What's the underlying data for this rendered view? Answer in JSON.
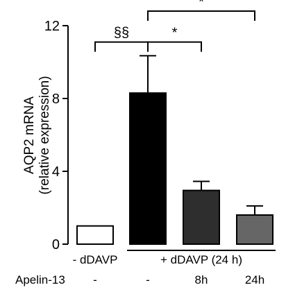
{
  "chart_data": {
    "type": "bar",
    "ylabel_line1": "AQP2 mRNA",
    "ylabel_line2": "(relative expression)",
    "ylim": [
      0,
      12
    ],
    "yticks": [
      0,
      4,
      8,
      12
    ],
    "grid": false,
    "bars": [
      {
        "value": 1.0,
        "error": 0,
        "color": "#ffffff"
      },
      {
        "value": 8.3,
        "error": 2.05,
        "color": "#000000"
      },
      {
        "value": 2.95,
        "error": 0.5,
        "color": "#2e2e2e"
      },
      {
        "value": 1.6,
        "error": 0.5,
        "color": "#666666"
      }
    ],
    "apelin_row": {
      "label": "Apelin-13",
      "values": [
        "-",
        "-",
        "8h",
        "24h"
      ]
    },
    "groups": [
      {
        "label": "- dDAVP",
        "bars": [
          0
        ]
      },
      {
        "label": "+ dDAVP (24 h)",
        "bars": [
          1,
          2,
          3
        ]
      }
    ],
    "significance": [
      {
        "from": 0,
        "to": 1,
        "label": "§§",
        "level": 11.1
      },
      {
        "from": 1,
        "to": 2,
        "label": "*",
        "level": 11.1
      },
      {
        "from": 1,
        "to": 3,
        "label": "*",
        "level": 12.8
      }
    ]
  }
}
